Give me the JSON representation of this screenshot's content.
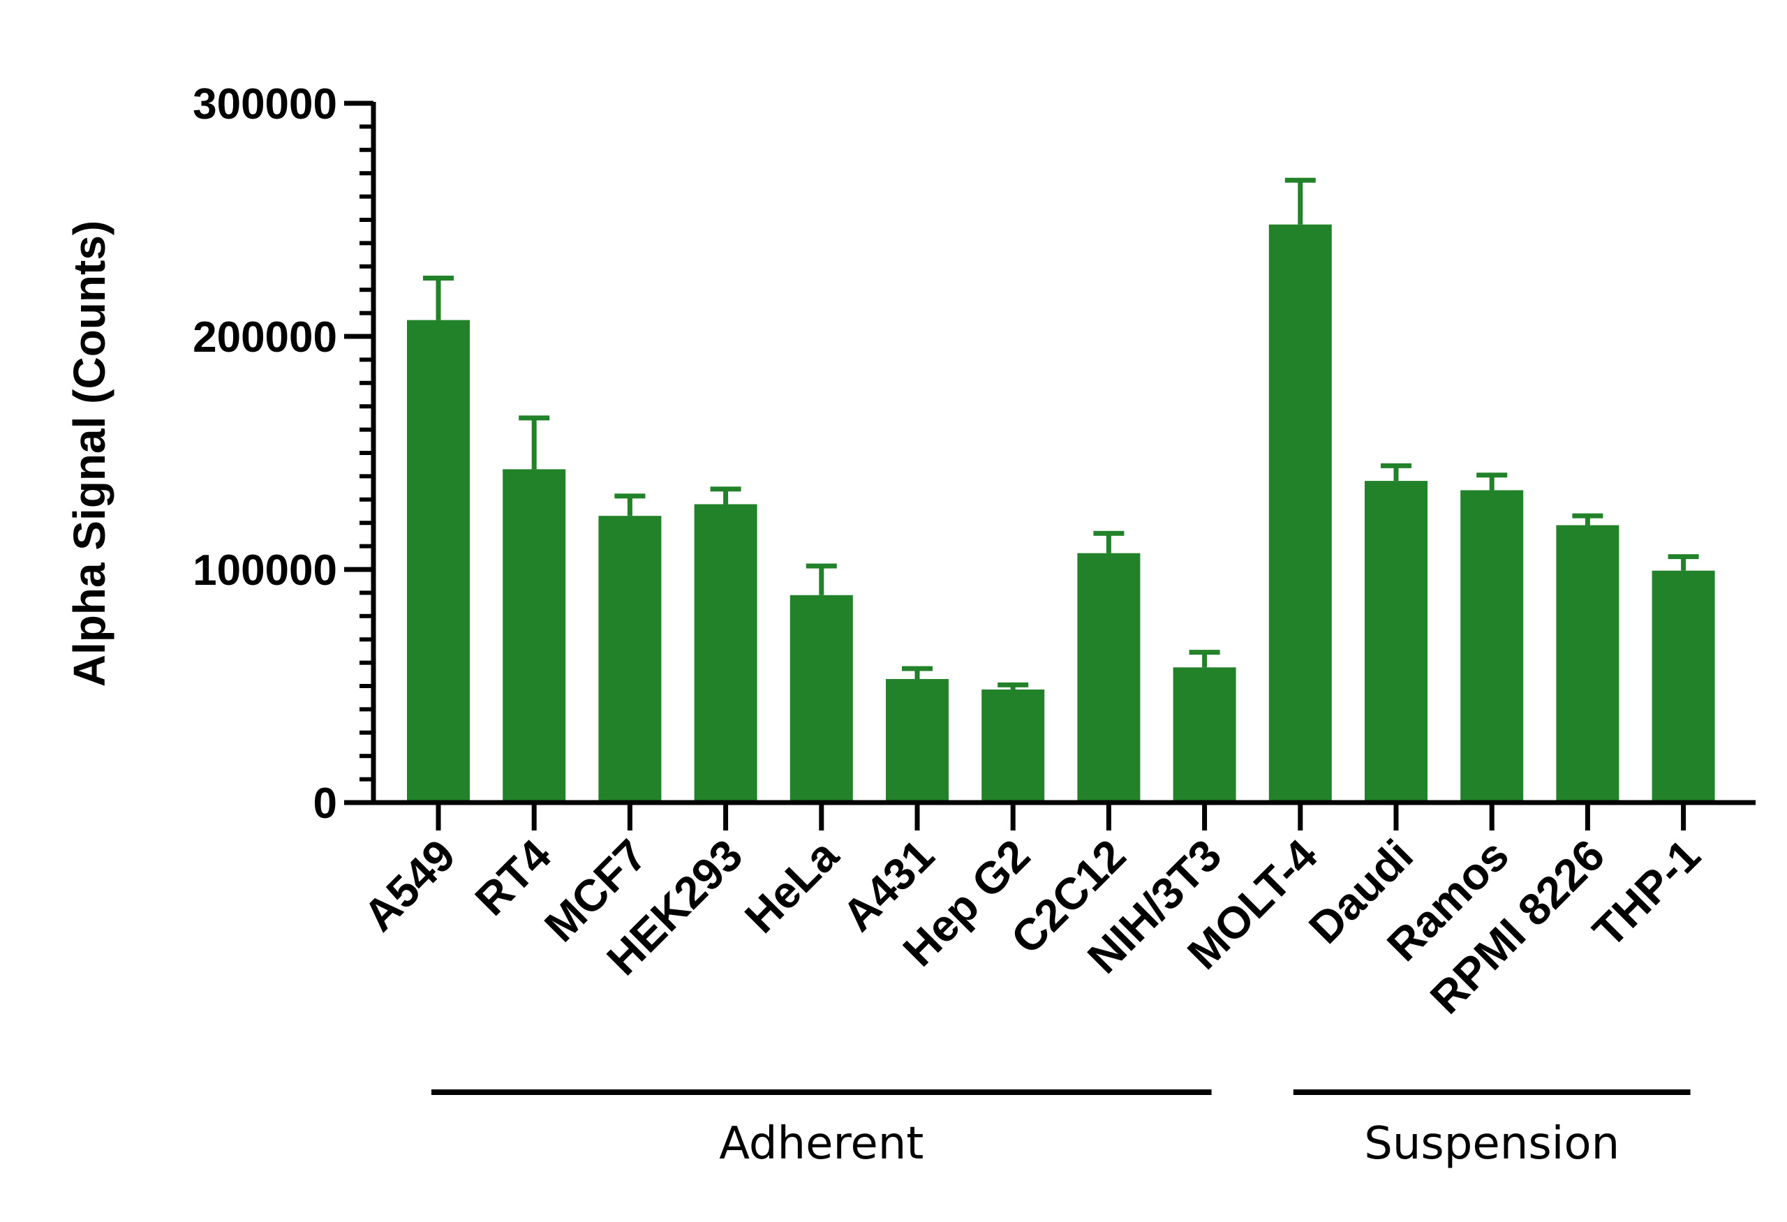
{
  "chart_data": {
    "type": "bar",
    "title": "",
    "xlabel": "",
    "ylabel": "Alpha Signal (Counts)",
    "ylim": [
      0,
      300000
    ],
    "yticks": [
      0,
      100000,
      200000,
      300000
    ],
    "ytick_labels": [
      "0",
      "100000",
      "200000",
      "300000"
    ],
    "categories": [
      "A549",
      "RT4",
      "MCF7",
      "HEK293",
      "HeLa",
      "A431",
      "Hep G2",
      "C2C12",
      "NIH/3T3",
      "MOLT-4",
      "Daudi",
      "Ramos",
      "RPMI 8226",
      "THP-1"
    ],
    "values": [
      207000,
      143000,
      123000,
      128000,
      89000,
      53000,
      48500,
      107000,
      58000,
      248000,
      138000,
      134000,
      119000,
      99500
    ],
    "error_upper": [
      225000,
      165000,
      131500,
      134500,
      101500,
      57500,
      50500,
      115500,
      64500,
      267000,
      144500,
      140500,
      123000,
      105500
    ],
    "groups": [
      {
        "label": "Adherent",
        "start": 0,
        "end": 8
      },
      {
        "label": "Suspension",
        "start": 9,
        "end": 13
      }
    ],
    "colors": {
      "bar": "#22822a",
      "axis": "#000000"
    },
    "grid": false,
    "legend": "none"
  }
}
